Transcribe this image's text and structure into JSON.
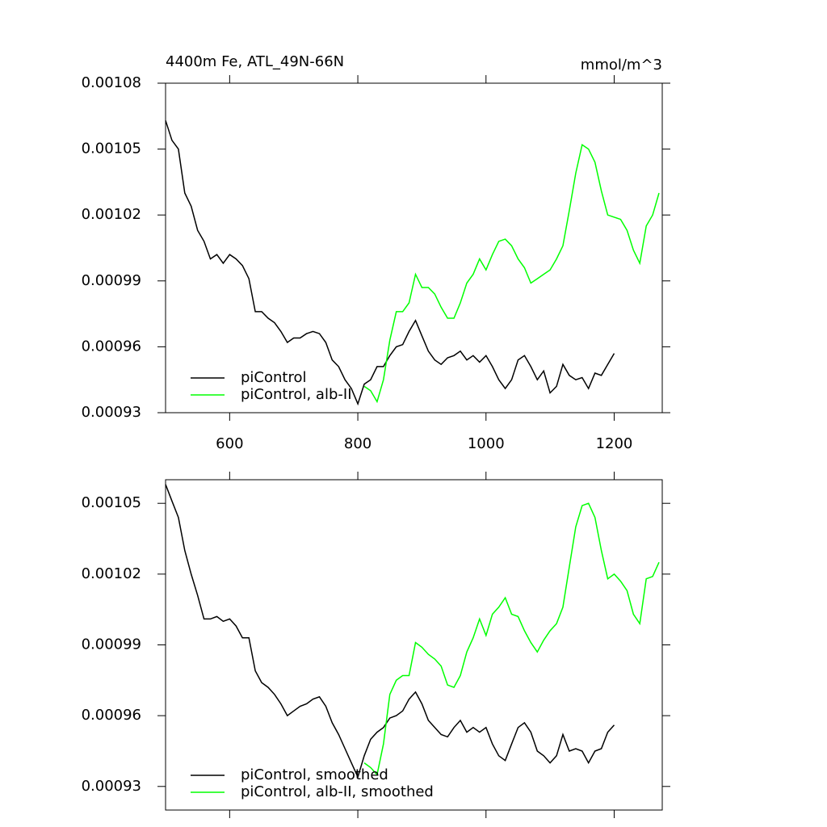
{
  "chart_data": [
    {
      "type": "line",
      "title": "4400m Fe, ATL_49N-66N",
      "units": "mmol/m^3",
      "xlim": [
        500,
        1275
      ],
      "xticks": [
        600,
        800,
        1000,
        1200
      ],
      "show_xtick_labels": true,
      "ylim": [
        0.00093,
        0.00108
      ],
      "yticks": [
        0.00093,
        0.00096,
        0.00099,
        0.00102,
        0.00105,
        0.00108
      ],
      "legend": "lower left",
      "series": [
        {
          "name": "piControl",
          "color": "#000000",
          "x": [
            500,
            510,
            520,
            530,
            540,
            550,
            560,
            570,
            580,
            590,
            600,
            610,
            620,
            630,
            640,
            650,
            660,
            670,
            680,
            690,
            700,
            710,
            720,
            730,
            740,
            750,
            760,
            770,
            780,
            790,
            800,
            810,
            820,
            830,
            840,
            850,
            860,
            870,
            880,
            890,
            900,
            910,
            920,
            930,
            940,
            950,
            960,
            970,
            980,
            990,
            1000,
            1010,
            1020,
            1030,
            1040,
            1050,
            1060,
            1070,
            1080,
            1090,
            1100,
            1110,
            1120,
            1130,
            1140,
            1150,
            1160,
            1170,
            1180,
            1190,
            1200
          ],
          "values": [
            0.001063,
            0.001054,
            0.00105,
            0.00103,
            0.001024,
            0.001013,
            0.001008,
            0.001,
            0.001002,
            0.000998,
            0.001002,
            0.001,
            0.000997,
            0.000991,
            0.000976,
            0.000976,
            0.000973,
            0.000971,
            0.000967,
            0.000962,
            0.000964,
            0.000964,
            0.000966,
            0.000967,
            0.000966,
            0.000962,
            0.000954,
            0.000951,
            0.000945,
            0.000941,
            0.000934,
            0.000943,
            0.000945,
            0.000951,
            0.000951,
            0.000956,
            0.00096,
            0.000961,
            0.000967,
            0.000972,
            0.000965,
            0.000958,
            0.000954,
            0.000952,
            0.000955,
            0.000956,
            0.000958,
            0.000954,
            0.000956,
            0.000953,
            0.000956,
            0.000951,
            0.000945,
            0.000941,
            0.000945,
            0.000954,
            0.000956,
            0.000951,
            0.000945,
            0.000949,
            0.000939,
            0.000942,
            0.000952,
            0.000947,
            0.000945,
            0.000946,
            0.000941,
            0.000948,
            0.000947,
            0.000952,
            0.000957
          ]
        },
        {
          "name": "piControl, alb-II",
          "color": "#00ff00",
          "x": [
            810,
            820,
            830,
            840,
            850,
            860,
            870,
            880,
            890,
            900,
            910,
            920,
            930,
            940,
            950,
            960,
            970,
            980,
            990,
            1000,
            1010,
            1020,
            1030,
            1040,
            1050,
            1060,
            1070,
            1080,
            1090,
            1100,
            1110,
            1120,
            1130,
            1140,
            1150,
            1160,
            1170,
            1180,
            1190,
            1200,
            1210,
            1220,
            1230,
            1240,
            1250,
            1260,
            1270
          ],
          "values": [
            0.000942,
            0.00094,
            0.000935,
            0.000945,
            0.000963,
            0.000976,
            0.000976,
            0.00098,
            0.000993,
            0.000987,
            0.000987,
            0.000984,
            0.000978,
            0.000973,
            0.000973,
            0.00098,
            0.000989,
            0.000993,
            0.001,
            0.000995,
            0.001002,
            0.001008,
            0.001009,
            0.001006,
            0.001,
            0.000996,
            0.000989,
            0.000991,
            0.000993,
            0.000995,
            0.001,
            0.001006,
            0.001022,
            0.001039,
            0.001052,
            0.00105,
            0.001044,
            0.001031,
            0.00102,
            0.001019,
            0.001018,
            0.001013,
            0.001004,
            0.000998,
            0.001015,
            0.00102,
            0.00103
          ]
        }
      ]
    },
    {
      "type": "line",
      "xlim": [
        500,
        1275
      ],
      "xticks": [
        600,
        800,
        1000,
        1200
      ],
      "show_xtick_labels": false,
      "ylim": [
        0.00092,
        0.00106
      ],
      "yticks": [
        0.00093,
        0.00096,
        0.00099,
        0.00102,
        0.00105
      ],
      "legend": "lower left",
      "series": [
        {
          "name": "piControl, smoothed",
          "color": "#000000",
          "x": [
            500,
            510,
            520,
            530,
            540,
            550,
            560,
            570,
            580,
            590,
            600,
            610,
            620,
            630,
            640,
            650,
            660,
            670,
            680,
            690,
            700,
            710,
            720,
            730,
            740,
            750,
            760,
            770,
            780,
            790,
            800,
            810,
            820,
            830,
            840,
            850,
            860,
            870,
            880,
            890,
            900,
            910,
            920,
            930,
            940,
            950,
            960,
            970,
            980,
            990,
            1000,
            1010,
            1020,
            1030,
            1040,
            1050,
            1060,
            1070,
            1080,
            1090,
            1100,
            1110,
            1120,
            1130,
            1140,
            1150,
            1160,
            1170,
            1180,
            1190,
            1200
          ],
          "values": [
            0.001058,
            0.001051,
            0.001044,
            0.00103,
            0.00102,
            0.001011,
            0.001001,
            0.001001,
            0.001002,
            0.001,
            0.001001,
            0.000998,
            0.000993,
            0.000993,
            0.000979,
            0.000974,
            0.000972,
            0.000969,
            0.000965,
            0.00096,
            0.000962,
            0.000964,
            0.000965,
            0.000967,
            0.000968,
            0.000964,
            0.000957,
            0.000952,
            0.000946,
            0.00094,
            0.000934,
            0.000943,
            0.00095,
            0.000953,
            0.000955,
            0.000959,
            0.00096,
            0.000962,
            0.000967,
            0.00097,
            0.000965,
            0.000958,
            0.000955,
            0.000952,
            0.000951,
            0.000955,
            0.000958,
            0.000953,
            0.000955,
            0.000953,
            0.000955,
            0.000948,
            0.000943,
            0.000941,
            0.000948,
            0.000955,
            0.000957,
            0.000953,
            0.000945,
            0.000943,
            0.00094,
            0.000943,
            0.000952,
            0.000945,
            0.000946,
            0.000945,
            0.00094,
            0.000945,
            0.000946,
            0.000953,
            0.000956
          ]
        },
        {
          "name": "piControl, alb-II, smoothed",
          "color": "#00ff00",
          "x": [
            810,
            820,
            830,
            840,
            850,
            860,
            870,
            880,
            890,
            900,
            910,
            920,
            930,
            940,
            950,
            960,
            970,
            980,
            990,
            1000,
            1010,
            1020,
            1030,
            1040,
            1050,
            1060,
            1070,
            1080,
            1090,
            1100,
            1110,
            1120,
            1130,
            1140,
            1150,
            1160,
            1170,
            1180,
            1190,
            1200,
            1210,
            1220,
            1230,
            1240,
            1250,
            1260,
            1270
          ],
          "values": [
            0.00094,
            0.000938,
            0.000935,
            0.000948,
            0.000969,
            0.000975,
            0.000977,
            0.000977,
            0.000991,
            0.000989,
            0.000986,
            0.000984,
            0.000981,
            0.000973,
            0.000972,
            0.000977,
            0.000987,
            0.000993,
            0.001001,
            0.000994,
            0.001003,
            0.001006,
            0.00101,
            0.001003,
            0.001002,
            0.000996,
            0.000991,
            0.000987,
            0.000992,
            0.000996,
            0.000999,
            0.001006,
            0.001023,
            0.00104,
            0.001049,
            0.00105,
            0.001044,
            0.00103,
            0.001018,
            0.00102,
            0.001017,
            0.001013,
            0.001003,
            0.000999,
            0.001018,
            0.001019,
            0.001025
          ]
        }
      ]
    }
  ]
}
